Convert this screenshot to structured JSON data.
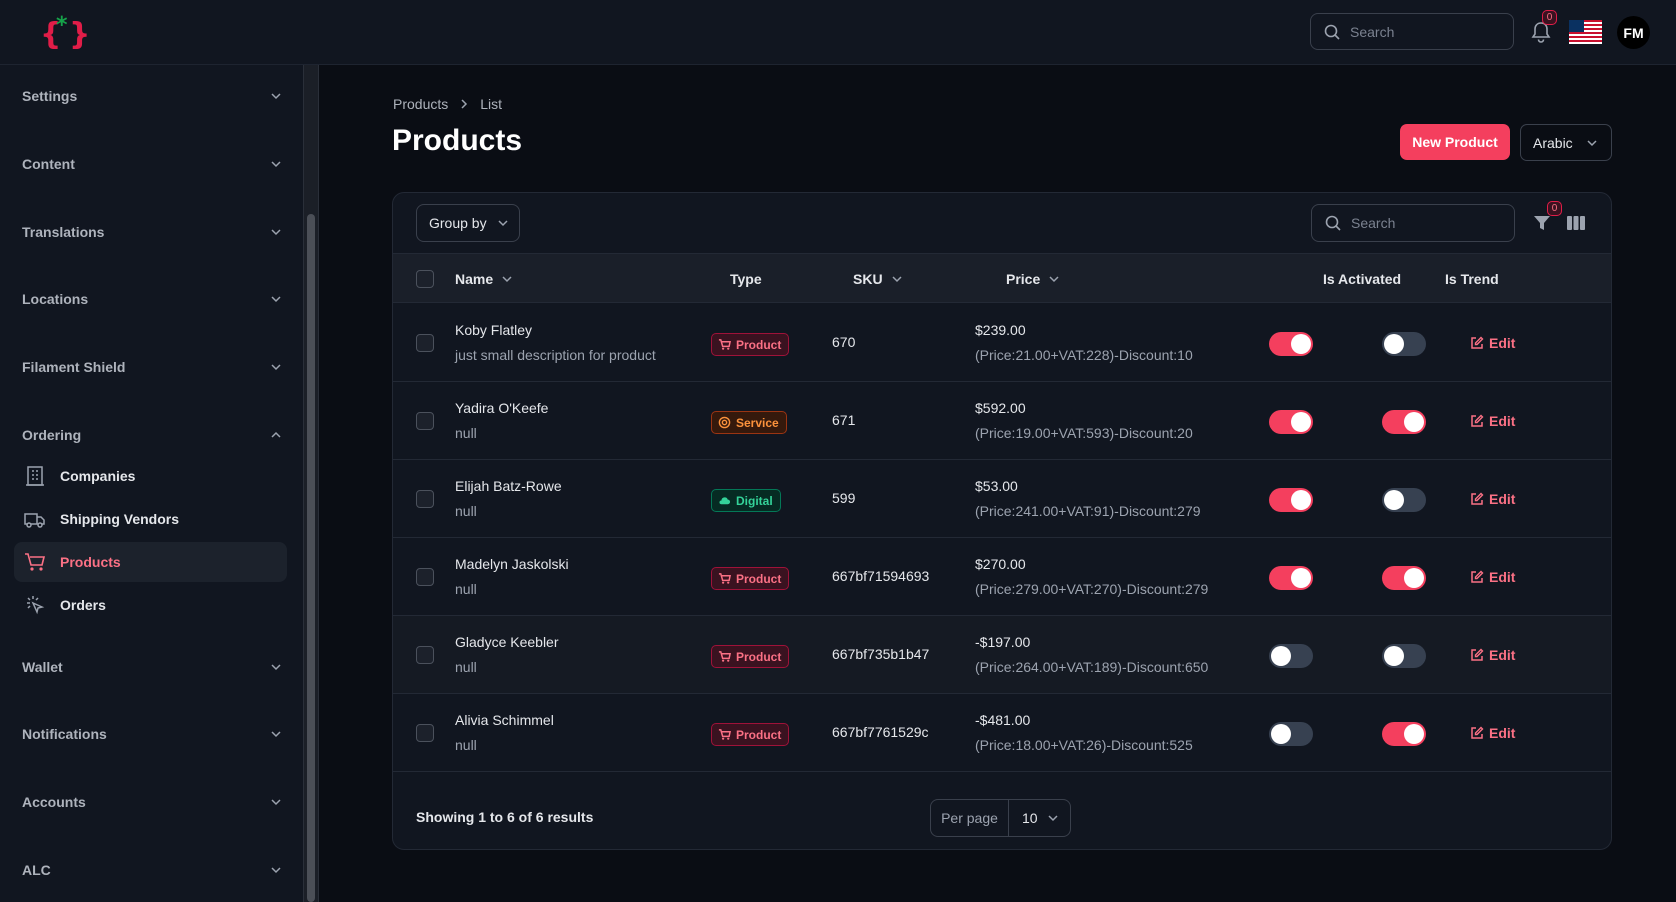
{
  "header": {
    "search_placeholder": "Search",
    "notifications_count": "0",
    "avatar_initials": "FM"
  },
  "sidebar": {
    "groups": [
      {
        "label": "Settings"
      },
      {
        "label": "Content"
      },
      {
        "label": "Translations"
      },
      {
        "label": "Locations"
      },
      {
        "label": "Filament Shield"
      },
      {
        "label": "Ordering"
      },
      {
        "label": "Wallet"
      },
      {
        "label": "Notifications"
      },
      {
        "label": "Accounts"
      },
      {
        "label": "ALC"
      }
    ],
    "ordering_items": [
      {
        "label": "Companies",
        "icon": "building-icon"
      },
      {
        "label": "Shipping Vendors",
        "icon": "truck-icon"
      },
      {
        "label": "Products",
        "icon": "cart-icon",
        "active": true
      },
      {
        "label": "Orders",
        "icon": "cursor-click-icon"
      }
    ]
  },
  "breadcrumb": {
    "parent": "Products",
    "current": "List"
  },
  "page": {
    "title": "Products",
    "new_button": "New Product",
    "language": "Arabic"
  },
  "table": {
    "group_by_label": "Group by",
    "search_placeholder": "Search",
    "filter_count": "0",
    "columns": {
      "name": "Name",
      "type": "Type",
      "sku": "SKU",
      "price": "Price",
      "activated": "Is Activated",
      "trend": "Is Trend"
    },
    "edit_label": "Edit",
    "rows": [
      {
        "name": "Koby Flatley",
        "description": "just small description for product",
        "type": "Product",
        "sku": "670",
        "price": "$239.00",
        "price_detail": "(Price:21.00+VAT:228)-Discount:10",
        "activated": true,
        "trend": false
      },
      {
        "name": "Yadira O'Keefe",
        "description": "null",
        "type": "Service",
        "sku": "671",
        "price": "$592.00",
        "price_detail": "(Price:19.00+VAT:593)-Discount:20",
        "activated": true,
        "trend": true
      },
      {
        "name": "Elijah Batz-Rowe",
        "description": "null",
        "type": "Digital",
        "sku": "599",
        "price": "$53.00",
        "price_detail": "(Price:241.00+VAT:91)-Discount:279",
        "activated": true,
        "trend": false
      },
      {
        "name": "Madelyn Jaskolski",
        "description": "null",
        "type": "Product",
        "sku": "667bf71594693",
        "price": "$270.00",
        "price_detail": "(Price:279.00+VAT:270)-Discount:279",
        "activated": true,
        "trend": true
      },
      {
        "name": "Gladyce Keebler",
        "description": "null",
        "type": "Product",
        "sku": "667bf735b1b47",
        "price": "-$197.00",
        "price_detail": "(Price:264.00+VAT:189)-Discount:650",
        "activated": false,
        "trend": false
      },
      {
        "name": "Alivia Schimmel",
        "description": "null",
        "type": "Product",
        "sku": "667bf7761529c",
        "price": "-$481.00",
        "price_detail": "(Price:18.00+VAT:26)-Discount:525",
        "activated": false,
        "trend": true
      }
    ],
    "footer": {
      "summary": "Showing 1 to 6 of 6 results",
      "per_page_label": "Per page",
      "per_page_value": "10"
    }
  },
  "colors": {
    "accent": "#f43f5e",
    "background": "#0a0d14",
    "panel": "#111620"
  }
}
